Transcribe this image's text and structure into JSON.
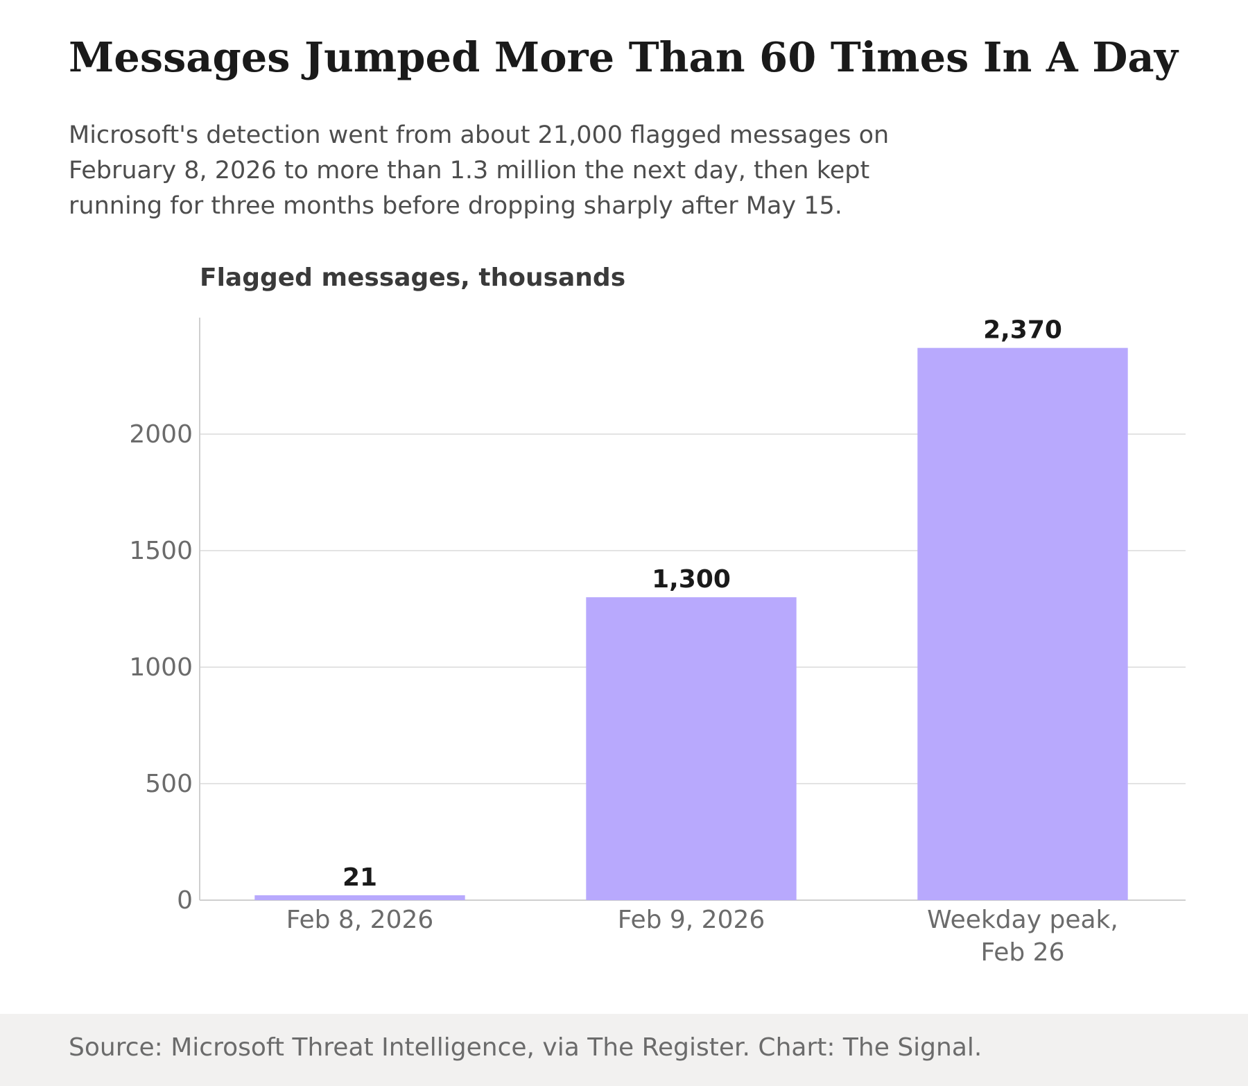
{
  "title": "Messages Jumped More Than 60 Times In A Day",
  "subtitle": "Microsoft's detection went from about 21,000 flagged messages on February 8, 2026 to more than 1.3 million the next day, then kept running for three months before dropping sharply after May 15.",
  "source": "Source: Microsoft Threat Intelligence, via The Register. Chart: The Signal.",
  "colors": {
    "bar": "#b8a9fd",
    "grid": "#e3e3e3",
    "axis": "#cfcfcf",
    "tick": "#6b6b6b"
  },
  "chart_data": {
    "type": "bar",
    "title": "Flagged messages, thousands",
    "categories": [
      [
        "Feb 8, 2026"
      ],
      [
        "Feb 9, 2026"
      ],
      [
        "Weekday peak,",
        "Feb 26"
      ]
    ],
    "values": [
      21,
      1300,
      2370
    ],
    "value_labels": [
      "21",
      "1,300",
      "2,370"
    ],
    "ylim": [
      0,
      2500
    ],
    "yticks": [
      0,
      500,
      1000,
      1500,
      2000
    ],
    "grid": true,
    "legend": "none"
  }
}
